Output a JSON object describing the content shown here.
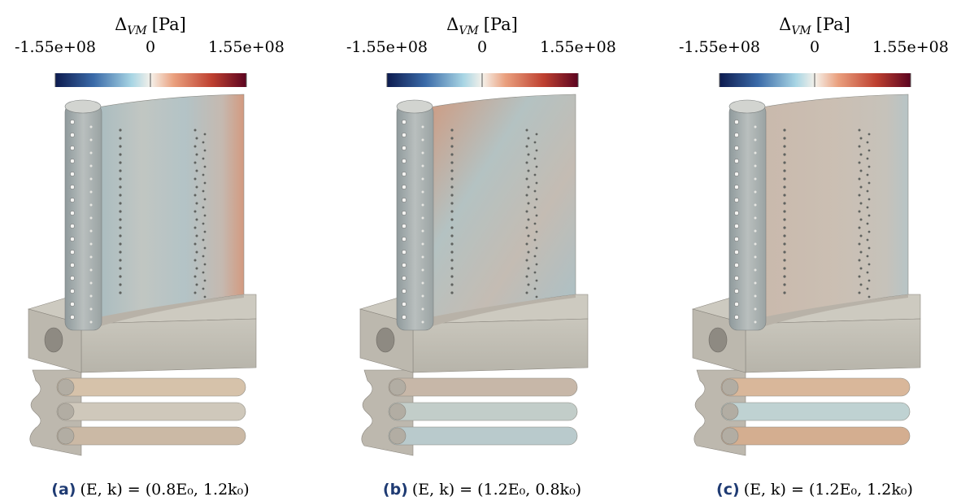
{
  "panels": [
    {
      "colorbar": {
        "symbol": "Δ",
        "subscript": "VM",
        "unit": "[Pa]",
        "ticks": [
          "-1.55e+08",
          "0",
          "1.55e+08"
        ]
      },
      "caption": {
        "label": "(a)",
        "text": "(E, k) = (0.8E₀, 1.2k₀)"
      }
    },
    {
      "colorbar": {
        "symbol": "Δ",
        "subscript": "VM",
        "unit": "[Pa]",
        "ticks": [
          "-1.55e+08",
          "0",
          "1.55e+08"
        ]
      },
      "caption": {
        "label": "(b)",
        "text": "(E, k) = (1.2E₀, 0.8k₀)"
      }
    },
    {
      "colorbar": {
        "symbol": "Δ",
        "subscript": "VM",
        "unit": "[Pa]",
        "ticks": [
          "-1.55e+08",
          "0",
          "1.55e+08"
        ]
      },
      "caption": {
        "label": "(c)",
        "text": "(E, k) = (1.2E₀, 1.2k₀)"
      }
    }
  ]
}
